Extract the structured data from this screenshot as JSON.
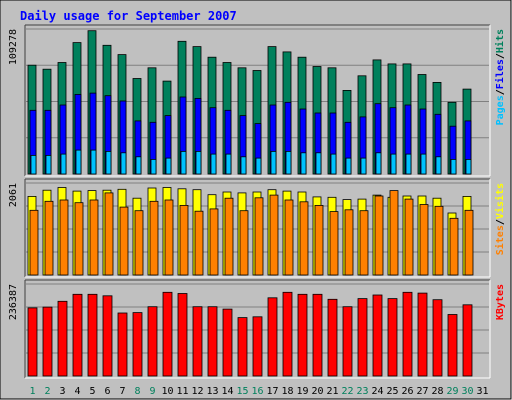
{
  "title": "Daily usage for September 2007",
  "colors": {
    "background": "#c0c0c0",
    "title": "#0000ff",
    "hits": "#00805c",
    "files": "#0000ff",
    "pages": "#00c0ff",
    "visits": "#ffff00",
    "sites": "#ff8000",
    "kbytes": "#ff0000",
    "weekend_label": "#00805c",
    "weekday_label": "#000000"
  },
  "chart_data": [
    {
      "type": "bar",
      "panel": "hits-files-pages",
      "ymax_label": "109278",
      "ylim": [
        0,
        109278
      ],
      "right_label": [
        "Pages",
        "Files",
        "Hits"
      ],
      "right_label_sep": "/",
      "categories": [
        "1",
        "2",
        "3",
        "4",
        "5",
        "6",
        "7",
        "8",
        "9",
        "10",
        "11",
        "12",
        "13",
        "14",
        "15",
        "16",
        "17",
        "18",
        "19",
        "20",
        "21",
        "22",
        "23",
        "24",
        "25",
        "26",
        "27",
        "28",
        "29",
        "30",
        "31"
      ],
      "series": [
        {
          "name": "Hits",
          "color": "#00805c",
          "values": [
            82000,
            79000,
            84000,
            99000,
            108000,
            97000,
            90000,
            72000,
            80000,
            70000,
            100000,
            96000,
            88000,
            84000,
            80000,
            78000,
            96000,
            92000,
            88000,
            81000,
            80000,
            63000,
            74000,
            86000,
            83000,
            83000,
            75000,
            69000,
            54000,
            64000,
            0
          ]
        },
        {
          "name": "Files",
          "color": "#0000ff",
          "values": [
            48000,
            48000,
            52000,
            60000,
            61000,
            59000,
            55000,
            40000,
            39000,
            44000,
            58000,
            57000,
            50000,
            48000,
            44000,
            38000,
            52000,
            54000,
            49000,
            46000,
            46000,
            39000,
            43000,
            53000,
            50000,
            52000,
            49000,
            45000,
            36000,
            40000,
            0
          ]
        },
        {
          "name": "Pages",
          "color": "#00c0ff",
          "values": [
            14000,
            14000,
            15000,
            18000,
            18000,
            17000,
            16000,
            13000,
            11000,
            12000,
            17000,
            17000,
            15000,
            15000,
            13000,
            12000,
            17000,
            17000,
            16000,
            16000,
            15000,
            12000,
            12000,
            16000,
            15000,
            15000,
            15000,
            13000,
            11000,
            11000,
            0
          ]
        }
      ],
      "xlabels_shown": false
    },
    {
      "type": "bar",
      "panel": "visits-sites",
      "ymax_label": "2061",
      "ylim": [
        0,
        2061
      ],
      "right_label": [
        "Sites",
        "Visits"
      ],
      "right_label_sep": "/",
      "categories": [
        "1",
        "2",
        "3",
        "4",
        "5",
        "6",
        "7",
        "8",
        "9",
        "10",
        "11",
        "12",
        "13",
        "14",
        "15",
        "16",
        "17",
        "18",
        "19",
        "20",
        "21",
        "22",
        "23",
        "24",
        "25",
        "26",
        "27",
        "28",
        "29",
        "30",
        "31"
      ],
      "series": [
        {
          "name": "Visits",
          "color": "#ffff00",
          "values": [
            1760,
            1900,
            1960,
            1880,
            1890,
            1900,
            1920,
            1720,
            1950,
            1960,
            1930,
            1910,
            1800,
            1860,
            1840,
            1860,
            1910,
            1880,
            1860,
            1750,
            1740,
            1690,
            1700,
            1790,
            1740,
            1770,
            1770,
            1720,
            1390,
            1760,
            0
          ]
        },
        {
          "name": "Sites",
          "color": "#ff8000",
          "values": [
            1450,
            1650,
            1680,
            1620,
            1680,
            1840,
            1520,
            1440,
            1650,
            1680,
            1560,
            1430,
            1480,
            1720,
            1440,
            1730,
            1790,
            1680,
            1640,
            1560,
            1420,
            1460,
            1440,
            1770,
            1890,
            1700,
            1580,
            1540,
            1270,
            1450,
            0
          ]
        }
      ],
      "xlabels_shown": false
    },
    {
      "type": "bar",
      "panel": "kbytes",
      "ymax_label": "236387",
      "ylim": [
        0,
        236387
      ],
      "right_label": [
        "KBytes"
      ],
      "right_label_sep": "",
      "categories": [
        "1",
        "2",
        "3",
        "4",
        "5",
        "6",
        "7",
        "8",
        "9",
        "10",
        "11",
        "12",
        "13",
        "14",
        "15",
        "16",
        "17",
        "18",
        "19",
        "20",
        "21",
        "22",
        "23",
        "24",
        "25",
        "26",
        "27",
        "28",
        "29",
        "30",
        "31"
      ],
      "series": [
        {
          "name": "KBytes",
          "color": "#ff0000",
          "values": [
            175000,
            177000,
            192000,
            210000,
            210000,
            206000,
            162000,
            163000,
            178000,
            215000,
            212000,
            178000,
            178000,
            172000,
            150000,
            152000,
            201000,
            215000,
            210000,
            210000,
            197000,
            178000,
            199000,
            208000,
            199000,
            215000,
            213000,
            196000,
            158000,
            183000,
            0
          ]
        }
      ],
      "xlabels_shown": true,
      "weekend_days": [
        "1",
        "2",
        "8",
        "9",
        "15",
        "16",
        "22",
        "23",
        "29",
        "30"
      ]
    }
  ]
}
